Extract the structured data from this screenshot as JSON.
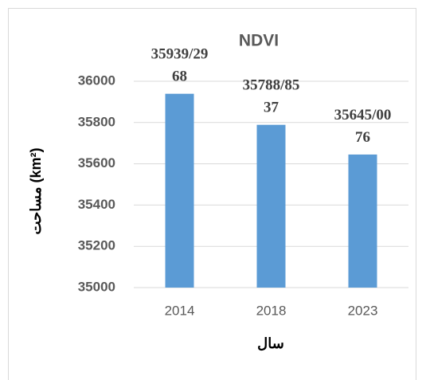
{
  "chart_data": {
    "type": "bar",
    "title": "NDVI",
    "x_label": "سال",
    "y_label": "مساحت (km²)",
    "categories": [
      "2014",
      "2018",
      "2023"
    ],
    "values": [
      35939.2968,
      35788.8537,
      35645.0076
    ],
    "value_labels": [
      "35939/2968",
      "35788/8537",
      "35645/0076"
    ],
    "color": "#5b9bd5",
    "ylim": [
      35000,
      36000
    ],
    "yticks": [
      35000,
      35200,
      35400,
      35600,
      35800,
      36000
    ],
    "grid": true
  }
}
